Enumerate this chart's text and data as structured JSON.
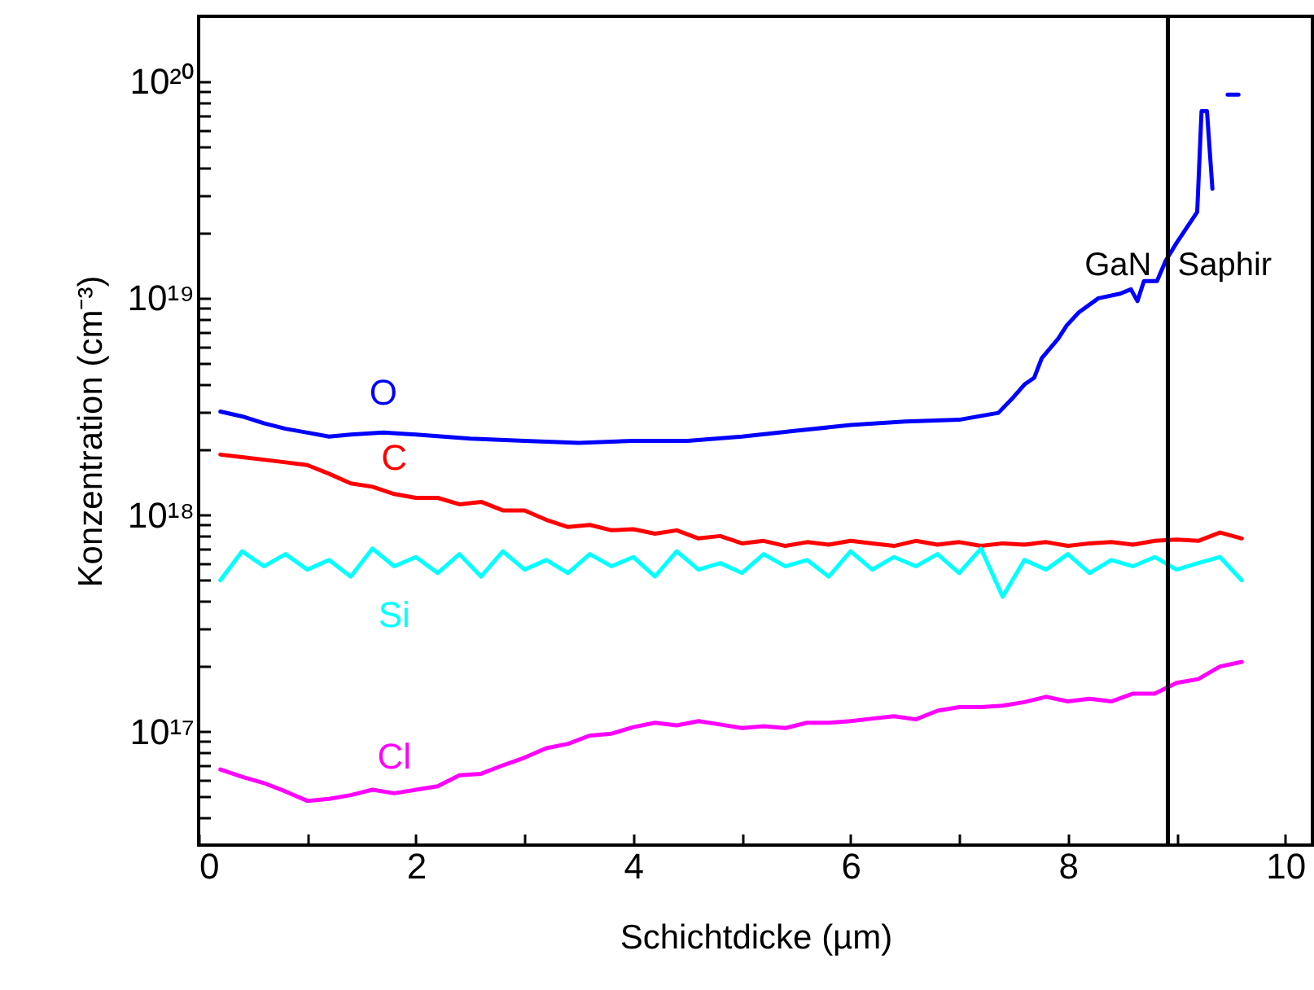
{
  "chart_data": {
    "type": "line",
    "xlabel": "Schichtdicke (µm)",
    "ylabel": "Konzentration (cm⁻³)",
    "x": [
      0.2,
      0.4,
      0.6,
      0.8,
      1.0,
      1.2,
      1.4,
      1.6,
      1.8,
      2.0,
      2.2,
      2.4,
      2.6,
      2.8,
      3.0,
      3.2,
      3.4,
      3.6,
      3.8,
      4.0,
      4.2,
      4.4,
      4.6,
      4.8,
      5.0,
      5.2,
      5.4,
      5.6,
      5.8,
      6.0,
      6.2,
      6.4,
      6.6,
      6.8,
      7.0,
      7.2,
      7.4,
      7.6,
      7.8,
      8.0,
      8.2,
      8.4,
      8.6,
      8.8,
      9.0,
      9.2,
      9.4,
      9.6
    ],
    "series": [
      {
        "name": "O",
        "color": "#0000ff",
        "x": [
          0.2,
          0.4,
          0.6,
          0.8,
          1.0,
          1.2,
          1.4,
          1.7,
          2.0,
          2.5,
          3.0,
          3.5,
          4.0,
          4.5,
          5.0,
          5.5,
          6.0,
          6.5,
          7.0,
          7.36,
          7.5,
          7.6,
          7.69,
          7.76,
          7.91,
          7.99,
          8.1,
          8.28,
          8.48,
          8.58,
          8.64,
          8.7,
          8.82,
          8.9,
          9.0,
          9.19,
          9.23,
          9.28,
          9.33,
          9.36,
          9.45,
          9.47,
          9.57
        ],
        "values": [
          3e+18,
          2.85e+18,
          2.65e+18,
          2.5e+18,
          2.4e+18,
          2.3e+18,
          2.35e+18,
          2.4e+18,
          2.35e+18,
          2.25e+18,
          2.2e+18,
          2.15e+18,
          2.2e+18,
          2.2e+18,
          2.3e+18,
          2.45e+18,
          2.6e+18,
          2.7e+18,
          2.75e+18,
          2.96e+18,
          3.5e+18,
          4e+18,
          4.3e+18,
          5.3e+18,
          6.5e+18,
          7.5e+18,
          8.6e+18,
          1e+19,
          1.05e+19,
          1.1e+19,
          9.7e+18,
          1.2e+19,
          1.2e+19,
          1.49e+19,
          1.8e+19,
          2.5e+19,
          7.3e+19,
          7.3e+19,
          3.2e+19,
          null,
          null,
          8.7e+19,
          8.7e+19
        ]
      },
      {
        "name": "C",
        "color": "#ff0000",
        "values": [
          1.9e+18,
          1.85e+18,
          1.8e+18,
          1.75e+18,
          1.7e+18,
          1.55e+18,
          1.4e+18,
          1.35e+18,
          1.25e+18,
          1.2e+18,
          1.2e+18,
          1.12e+18,
          1.15e+18,
          1.05e+18,
          1.05e+18,
          9.5e+17,
          8.8e+17,
          9e+17,
          8.5e+17,
          8.6e+17,
          8.2e+17,
          8.5e+17,
          7.8e+17,
          8e+17,
          7.4e+17,
          7.6e+17,
          7.2e+17,
          7.5e+17,
          7.3e+17,
          7.6e+17,
          7.4e+17,
          7.2e+17,
          7.6e+17,
          7.3e+17,
          7.5e+17,
          7.2e+17,
          7.4e+17,
          7.3e+17,
          7.5e+17,
          7.2e+17,
          7.4e+17,
          7.5e+17,
          7.3e+17,
          7.6e+17,
          7.7e+17,
          7.6e+17,
          8.3e+17,
          7.8e+17
        ]
      },
      {
        "name": "Si",
        "color": "#00ffff",
        "values": [
          5e+17,
          6.8e+17,
          5.8e+17,
          6.6e+17,
          5.6e+17,
          6.2e+17,
          5.2e+17,
          7e+17,
          5.8e+17,
          6.4e+17,
          5.4e+17,
          6.6e+17,
          5.2e+17,
          6.8e+17,
          5.6e+17,
          6.2e+17,
          5.4e+17,
          6.6e+17,
          5.8e+17,
          6.4e+17,
          5.2e+17,
          6.8e+17,
          5.6e+17,
          6e+17,
          5.4e+17,
          6.6e+17,
          5.8e+17,
          6.2e+17,
          5.2e+17,
          6.8e+17,
          5.6e+17,
          6.4e+17,
          5.8e+17,
          6.6e+17,
          5.4e+17,
          7e+17,
          4.2e+17,
          6.2e+17,
          5.6e+17,
          6.6e+17,
          5.4e+17,
          6.2e+17,
          5.8e+17,
          6.4e+17,
          5.6e+17,
          6e+17,
          6.4e+17,
          5e+17
        ]
      },
      {
        "name": "Cl",
        "color": "#ff00ff",
        "values": [
          6.7e+16,
          6.2e+16,
          5.8e+16,
          5.3e+16,
          4.8e+16,
          4.9e+16,
          5.1e+16,
          5.4e+16,
          5.2e+16,
          5.4e+16,
          5.6e+16,
          6.3e+16,
          6.4e+16,
          7e+16,
          7.6e+16,
          8.4e+16,
          8.8e+16,
          9.6e+16,
          9.8e+16,
          1.05e+17,
          1.1e+17,
          1.07e+17,
          1.12e+17,
          1.08e+17,
          1.04e+17,
          1.06e+17,
          1.04e+17,
          1.1e+17,
          1.1e+17,
          1.12e+17,
          1.15e+17,
          1.18e+17,
          1.14e+17,
          1.25e+17,
          1.3e+17,
          1.3e+17,
          1.32e+17,
          1.37e+17,
          1.45e+17,
          1.38e+17,
          1.42e+17,
          1.38e+17,
          1.5e+17,
          1.5e+17,
          1.68e+17,
          1.75e+17,
          2e+17,
          2.1e+17
        ]
      }
    ],
    "xlim": [
      0,
      10.25
    ],
    "xticks": [
      0,
      {
        "value": 1,
        "label": null
      },
      2,
      {
        "value": 3,
        "label": null
      },
      4,
      {
        "value": 5,
        "label": null
      },
      6,
      {
        "value": 7,
        "label": null
      },
      8,
      {
        "value": 9,
        "label": null
      },
      10
    ],
    "log": true,
    "ylim": [
      3e+16,
      2e+20
    ],
    "yticks": [
      {
        "value": 4e+16,
        "label": null
      },
      {
        "value": 5e+16,
        "label": null
      },
      {
        "value": 6e+16,
        "label": null
      },
      {
        "value": 7e+16,
        "label": null
      },
      {
        "value": 8e+16,
        "label": null
      },
      {
        "value": 9e+16,
        "label": null
      },
      {
        "value": 1e+17,
        "label": "10¹⁷"
      },
      {
        "value": 2e+17,
        "label": null
      },
      {
        "value": 3e+17,
        "label": null
      },
      {
        "value": 4e+17,
        "label": null
      },
      {
        "value": 5e+17,
        "label": null
      },
      {
        "value": 6e+17,
        "label": null
      },
      {
        "value": 7e+17,
        "label": null
      },
      {
        "value": 8e+17,
        "label": null
      },
      {
        "value": 9e+17,
        "label": null
      },
      {
        "value": 1e+18,
        "label": "10¹⁸"
      },
      {
        "value": 2e+18,
        "label": null
      },
      {
        "value": 3e+18,
        "label": null
      },
      {
        "value": 4e+18,
        "label": null
      },
      {
        "value": 5e+18,
        "label": null
      },
      {
        "value": 6e+18,
        "label": null
      },
      {
        "value": 7e+18,
        "label": null
      },
      {
        "value": 8e+18,
        "label": null
      },
      {
        "value": 9e+18,
        "label": null
      },
      {
        "value": 1e+19,
        "label": "10¹⁹"
      },
      {
        "value": 2e+19,
        "label": null
      },
      {
        "value": 3e+19,
        "label": null
      },
      {
        "value": 4e+19,
        "label": null
      },
      {
        "value": 5e+19,
        "label": null
      },
      {
        "value": 6e+19,
        "label": null
      },
      {
        "value": 7e+19,
        "label": null
      },
      {
        "value": 8e+19,
        "label": null
      },
      {
        "value": 9e+19,
        "label": null
      },
      {
        "value": 1e+20,
        "label": "10²⁰"
      }
    ],
    "ref_lines": [
      {
        "axis": "x",
        "value": 8.92,
        "color": "#000000"
      }
    ],
    "annotations": [
      "GaN",
      "Saphir"
    ],
    "grid": false,
    "legend": false
  }
}
